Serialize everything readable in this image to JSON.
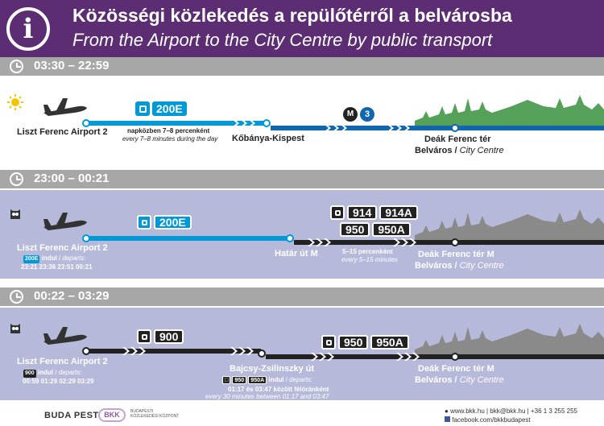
{
  "header": {
    "title_hu": "Közösségi közlekedés a repülőtérről a belvárosba",
    "title_en": "From the Airport to the City Centre by public transport",
    "info_glyph": "i"
  },
  "sections": [
    {
      "time": "03:30 – 22:59",
      "airport": "Liszt Ferenc Airport 2",
      "bus": "200E",
      "freq_hu": "napközben 7–8 percenként",
      "freq_en": "every 7–8 minutes during the day",
      "transfer": "Kőbánya-Kispest",
      "metro": "3",
      "metro_letter": "M",
      "dest": "Deák Ferenc tér",
      "dest_sub_hu": "Belváros",
      "dest_sub_en": "City Centre"
    },
    {
      "time": "23:00 – 00:21",
      "airport": "Liszt Ferenc Airport 2",
      "bus": "200E",
      "dep_badge": "200E",
      "dep_label_hu": "indul",
      "dep_label_en": "departs:",
      "dep_times": "23:21  23:36  23:51  00:21",
      "transfer": "Határ út M",
      "night_buses": [
        "914",
        "914A",
        "950",
        "950A"
      ],
      "freq_hu": "5–15 percenként",
      "freq_en": "every 5–15 minutes",
      "dest": "Deák Ferenc tér M",
      "dest_sub_hu": "Belváros",
      "dest_sub_en": "City Centre"
    },
    {
      "time": "00:22 – 03:29",
      "airport": "Liszt Ferenc Airport 2",
      "bus": "900",
      "dep_badge": "900",
      "dep_label_hu": "indul",
      "dep_label_en": "departs:",
      "dep_times": "00:59  01:29  02:29  03:29",
      "transfer": "Bajcsy-Zsilinszky út",
      "night_buses": [
        "950",
        "950A"
      ],
      "transfer_badges": [
        "950",
        "950A"
      ],
      "transfer_label_hu": "indul",
      "transfer_label_en": "departs:",
      "transfer_note_hu": "01:17 és 03:47 között félóránként",
      "transfer_note_en": "every 30 minutes between 01:17 and 03:47",
      "dest": "Deák Ferenc tér M",
      "dest_sub_hu": "Belváros",
      "dest_sub_en": "City Centre"
    }
  ],
  "footer": {
    "logo_budapest": "BUDA PEST",
    "logo_bkk": "BKK",
    "bkk_sub": "BUDAPESTI KÖZLEKEDÉSI KÖZPONT",
    "contact": "www.bkk.hu | bkk@bkk.hu | +36 1 3 255 255",
    "facebook": "facebook.com/bkkbudapest"
  },
  "colors": {
    "header": "#5c2d72",
    "bar": "#a7a7a7",
    "night_panel": "#b7b9da",
    "bus_blue": "#0099d8",
    "metro_blue": "#1266b0",
    "metro_line3": "#005ca9",
    "city_green": "#55a15a",
    "city_gray": "#8a8a8a"
  }
}
